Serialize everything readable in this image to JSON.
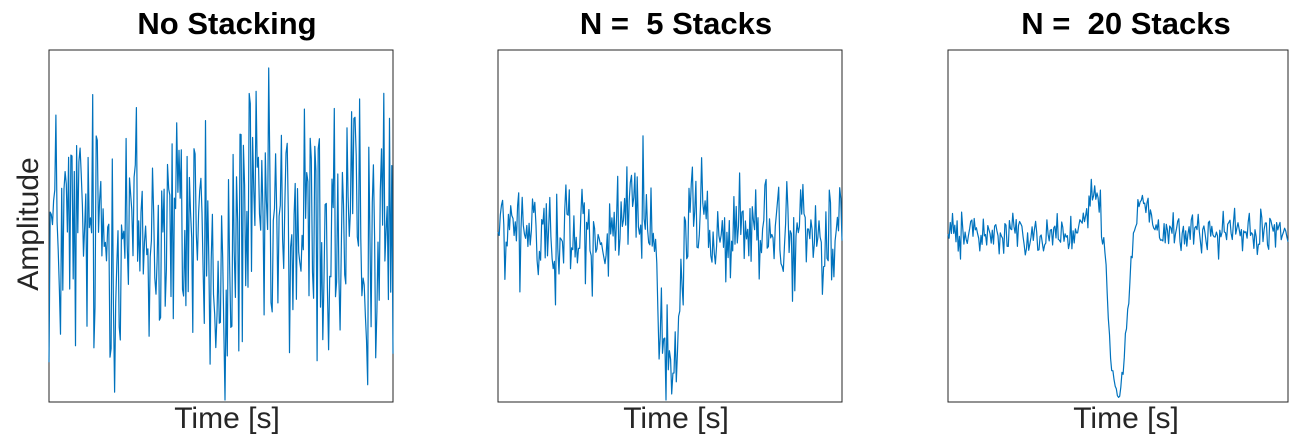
{
  "figure": {
    "ylabel": "Amplitude",
    "series_color": "#0072BD"
  },
  "chart_data": [
    {
      "type": "line",
      "title": "No Stacking",
      "xlabel": "Time [s]",
      "ylabel": "Amplitude",
      "n_points": 300,
      "signal": "wavelet",
      "noise_level": 0.42,
      "signal_amplitude": 0.55,
      "grid": false,
      "legend": "none"
    },
    {
      "type": "line",
      "title": "N =  5 Stacks",
      "xlabel": "Time [s]",
      "ylabel": "",
      "n_points": 300,
      "signal": "wavelet",
      "noise_level": 0.16,
      "signal_amplitude": 0.9,
      "grid": false,
      "legend": "none"
    },
    {
      "type": "line",
      "title": "N =  20 Stacks",
      "xlabel": "Time [s]",
      "ylabel": "",
      "n_points": 300,
      "signal": "wavelet",
      "noise_level": 0.06,
      "signal_amplitude": 1.0,
      "grid": false,
      "legend": "none"
    }
  ]
}
